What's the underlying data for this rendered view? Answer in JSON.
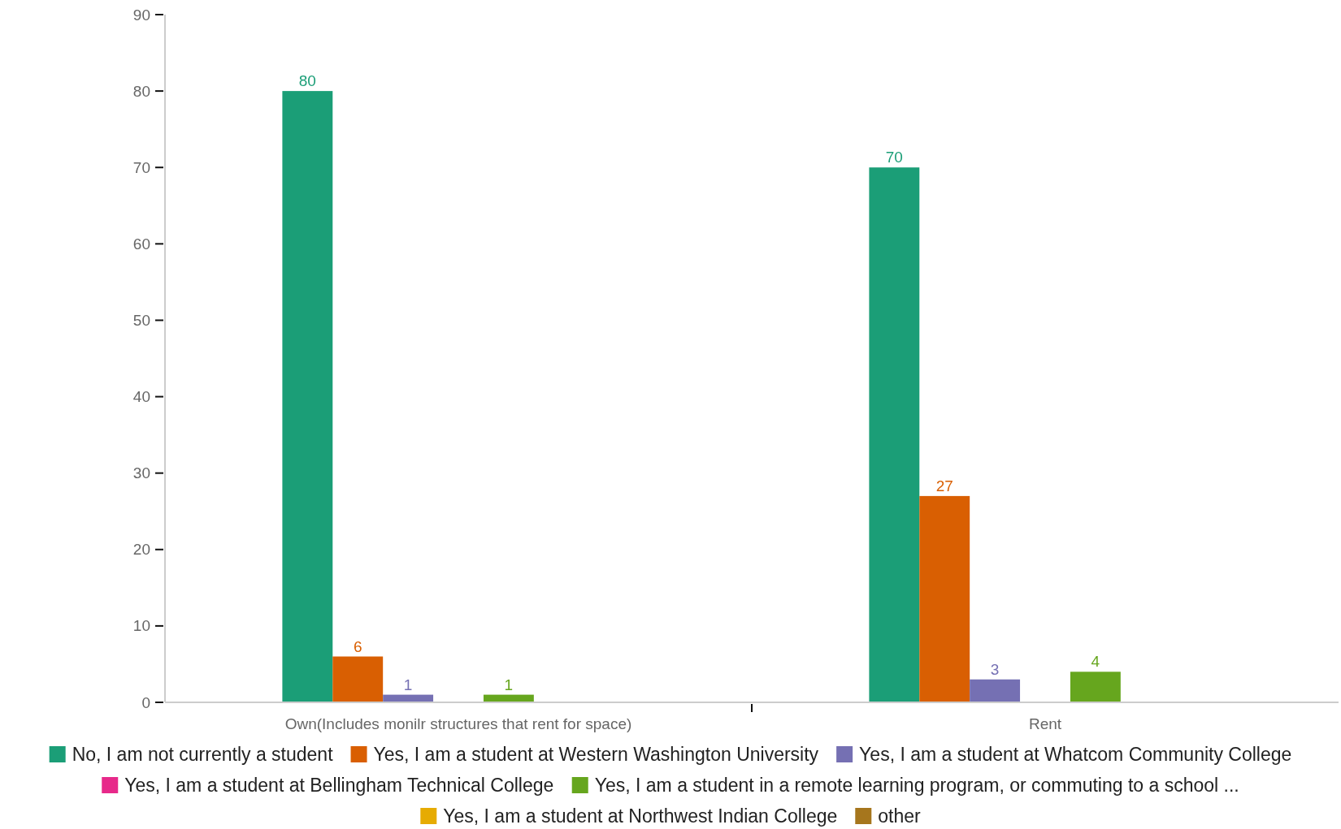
{
  "chart_data": {
    "type": "bar",
    "categories": [
      "Own(Includes monilr structures that rent for space)",
      "Rent"
    ],
    "series": [
      {
        "name": "No, I am not currently a student",
        "color": "#1b9e77",
        "values": [
          80,
          70
        ]
      },
      {
        "name": "Yes, I am a student at Western Washington University",
        "color": "#d95f02",
        "values": [
          6,
          27
        ]
      },
      {
        "name": "Yes, I am a student at Whatcom Community College",
        "color": "#7570b3",
        "values": [
          1,
          3
        ]
      },
      {
        "name": "Yes, I am a student at Bellingham Technical College",
        "color": "#e7298a",
        "values": [
          null,
          null
        ]
      },
      {
        "name": "Yes, I am a student in a remote learning program, or commuting to a school ...",
        "color": "#66a61e",
        "values": [
          1,
          4
        ]
      },
      {
        "name": "Yes, I am a student at Northwest Indian College",
        "color": "#e6ab02",
        "values": [
          null,
          null
        ]
      },
      {
        "name": "other",
        "color": "#a6761d",
        "values": [
          null,
          null
        ]
      }
    ],
    "ylim": [
      0,
      90
    ],
    "yticks": [
      0,
      10,
      20,
      30,
      40,
      50,
      60,
      70,
      80,
      90
    ],
    "data_labels": true,
    "legend": "bottom",
    "grid": false
  }
}
